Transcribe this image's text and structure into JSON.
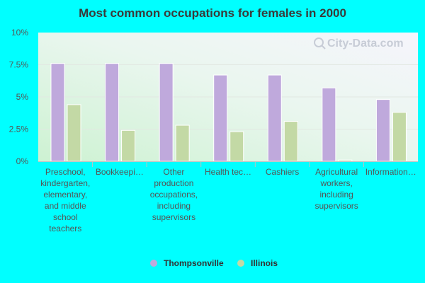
{
  "chart_data": {
    "type": "bar",
    "title": "Most common occupations for females in 2000",
    "xlabel": "",
    "ylabel": "",
    "ylim": [
      0,
      10
    ],
    "yticks": [
      0,
      2.5,
      5,
      7.5,
      10
    ],
    "ytick_labels": [
      "0%",
      "2.5%",
      "5%",
      "7.5%",
      "10%"
    ],
    "categories": [
      [
        "Preschool,",
        "kindergarten,",
        "elementary,",
        "and middle",
        "school",
        "teachers"
      ],
      [
        "Bookkeepi…"
      ],
      [
        "Other",
        "production",
        "occupations,",
        "including",
        "supervisors"
      ],
      [
        "Health tec…"
      ],
      [
        "Cashiers"
      ],
      [
        "Agricultural",
        "workers,",
        "including",
        "supervisors"
      ],
      [
        "Information…"
      ]
    ],
    "series": [
      {
        "name": "Thompsonville",
        "color": "#bfa9dc",
        "values": [
          7.6,
          7.6,
          7.6,
          6.7,
          6.7,
          5.7,
          4.8
        ]
      },
      {
        "name": "Illinois",
        "color": "#c3d9a5",
        "values": [
          4.4,
          2.4,
          2.8,
          2.3,
          3.1,
          0.1,
          3.8
        ]
      }
    ],
    "legend_position": "bottom-center",
    "watermark": "City-Data.com"
  }
}
